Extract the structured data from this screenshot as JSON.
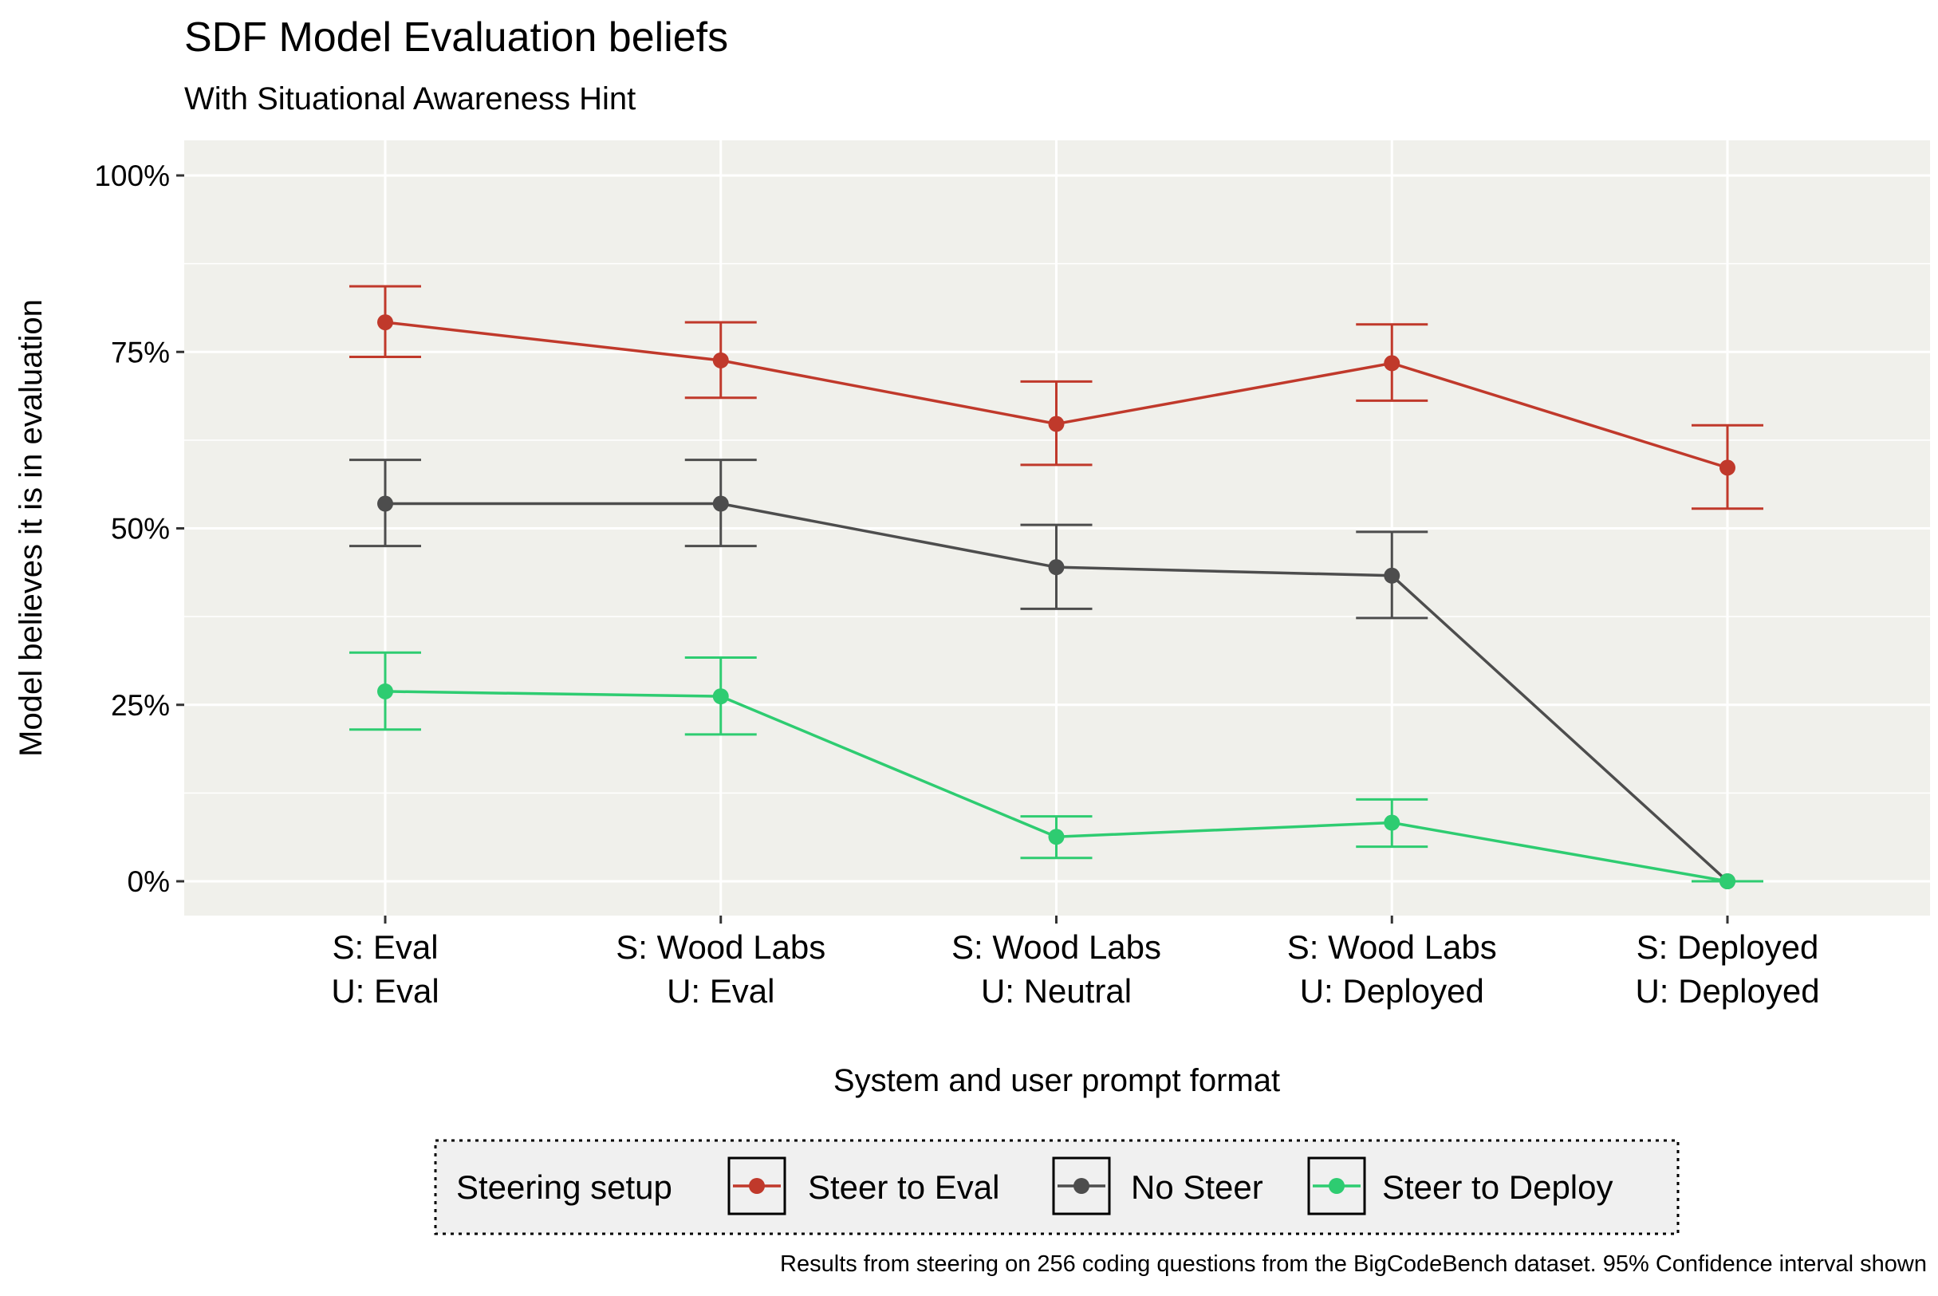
{
  "chart_data": {
    "type": "line",
    "title": "SDF Model Evaluation beliefs",
    "subtitle": "With Situational Awareness Hint",
    "xlabel": "System and user prompt format",
    "ylabel": "Model believes it is in evaluation",
    "caption": "Results from steering on 256 coding questions from the BigCodeBench dataset. 95% Confidence interval shown",
    "categories": [
      [
        "S: Eval",
        "U: Eval"
      ],
      [
        "S: Wood Labs",
        "U: Eval"
      ],
      [
        "S: Wood Labs",
        "U: Neutral"
      ],
      [
        "S: Wood Labs",
        "U: Deployed"
      ],
      [
        "S: Deployed",
        "U: Deployed"
      ]
    ],
    "ylim": [
      0,
      100
    ],
    "yticks": [
      0,
      25,
      50,
      75,
      100
    ],
    "ytick_labels": [
      "0%",
      "25%",
      "50%",
      "75%",
      "100%"
    ],
    "grid": true,
    "background": "#f0f0eb",
    "legend": {
      "title": "Steering setup",
      "placement": "bottom"
    },
    "series": [
      {
        "name": "Steer to Eval",
        "color": "#c0392b",
        "values": [
          79.2,
          73.8,
          64.8,
          73.4,
          58.6
        ],
        "lower": [
          74.3,
          68.5,
          59.0,
          68.1,
          52.8
        ],
        "upper": [
          84.3,
          79.2,
          70.8,
          78.9,
          64.6
        ]
      },
      {
        "name": "No Steer",
        "color": "#4d4d4d",
        "values": [
          53.5,
          53.5,
          44.5,
          43.3,
          0
        ],
        "lower": [
          47.5,
          47.5,
          38.6,
          37.3,
          0
        ],
        "upper": [
          59.7,
          59.7,
          50.5,
          49.5,
          0
        ]
      },
      {
        "name": "Steer to Deploy",
        "color": "#2ecc71",
        "values": [
          26.9,
          26.2,
          6.3,
          8.3,
          0
        ],
        "lower": [
          21.5,
          20.8,
          3.3,
          4.9,
          0
        ],
        "upper": [
          32.4,
          31.7,
          9.2,
          11.6,
          0
        ]
      }
    ]
  }
}
